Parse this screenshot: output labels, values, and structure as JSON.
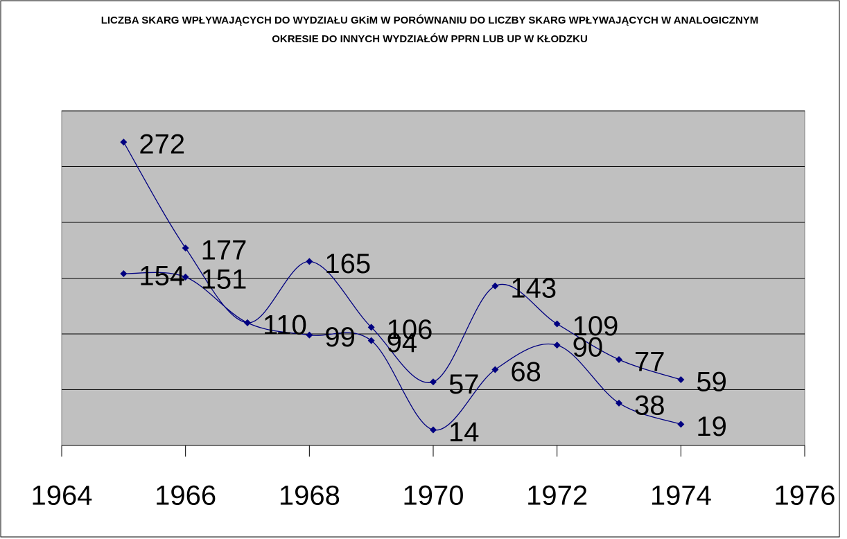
{
  "chart_data": {
    "type": "line",
    "title": "LICZBA SKARG WPŁYWAJĄCYCH DO WYDZIAŁU GKiM W PORÓWNANIU DO LICZBY SKARG WPŁYWAJĄCYCH W ANALOGICZNYM OKRESIE DO INNYCH WYDZIAŁÓW PPRN LUB UP W KŁODZKU",
    "x": [
      1965,
      1966,
      1967,
      1968,
      1969,
      1970,
      1971,
      1972,
      1973,
      1974
    ],
    "series": [
      {
        "color": "#000080",
        "values": [
          272,
          177,
          110,
          165,
          106,
          57,
          143,
          109,
          77,
          59
        ]
      },
      {
        "color": "#000080",
        "values": [
          154,
          151,
          110,
          99,
          94,
          14,
          68,
          90,
          38,
          19
        ]
      }
    ],
    "xlim": [
      1964,
      1976
    ],
    "xticks": [
      1964,
      1966,
      1968,
      1970,
      1972,
      1974,
      1976
    ],
    "ylim": [
      0,
      300
    ],
    "yticks": [
      0,
      50,
      100,
      150,
      200,
      250,
      300
    ],
    "grid": true,
    "smooth": true,
    "plot_background": "#c0c0c0"
  }
}
